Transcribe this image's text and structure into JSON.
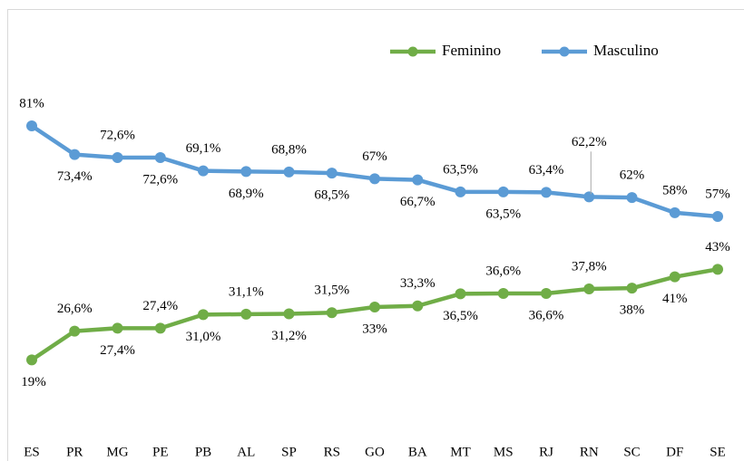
{
  "chart_data": {
    "type": "line",
    "categories": [
      "ES",
      "PR",
      "MG",
      "PE",
      "PB",
      "AL",
      "SP",
      "RS",
      "GO",
      "BA",
      "MT",
      "MS",
      "RJ",
      "RN",
      "SC",
      "DF",
      "SE"
    ],
    "legend": "top-right",
    "series": [
      {
        "name": "Feminino",
        "color": "#70ad47",
        "values": [
          19,
          26.6,
          27.4,
          27.4,
          31.0,
          31.1,
          31.2,
          31.5,
          33,
          33.3,
          36.5,
          36.6,
          36.6,
          37.8,
          38,
          41,
          43
        ],
        "value_labels": [
          "19%",
          "26,6%",
          "27,4%",
          "27,4%",
          "31,0%",
          "31,1%",
          "31,2%",
          "31,5%",
          "33%",
          "33,3%",
          "36,5%",
          "36,6%",
          "36,6%",
          "37,8%",
          "38%",
          "41%",
          "43%"
        ]
      },
      {
        "name": "Masculino",
        "color": "#5b9bd5",
        "values": [
          81,
          73.4,
          72.6,
          72.6,
          69.1,
          68.9,
          68.8,
          68.5,
          67,
          66.7,
          63.5,
          63.5,
          63.4,
          62.2,
          62,
          58,
          57
        ],
        "value_labels": [
          "81%",
          "73,4%",
          "72,6%",
          "72,6%",
          "69,1%",
          "68,9%",
          "68,8%",
          "68,5%",
          "67%",
          "66,7%",
          "63,5%",
          "63,5%",
          "63,4%",
          "62,2%",
          "62%",
          "58%",
          "57%"
        ]
      }
    ]
  }
}
